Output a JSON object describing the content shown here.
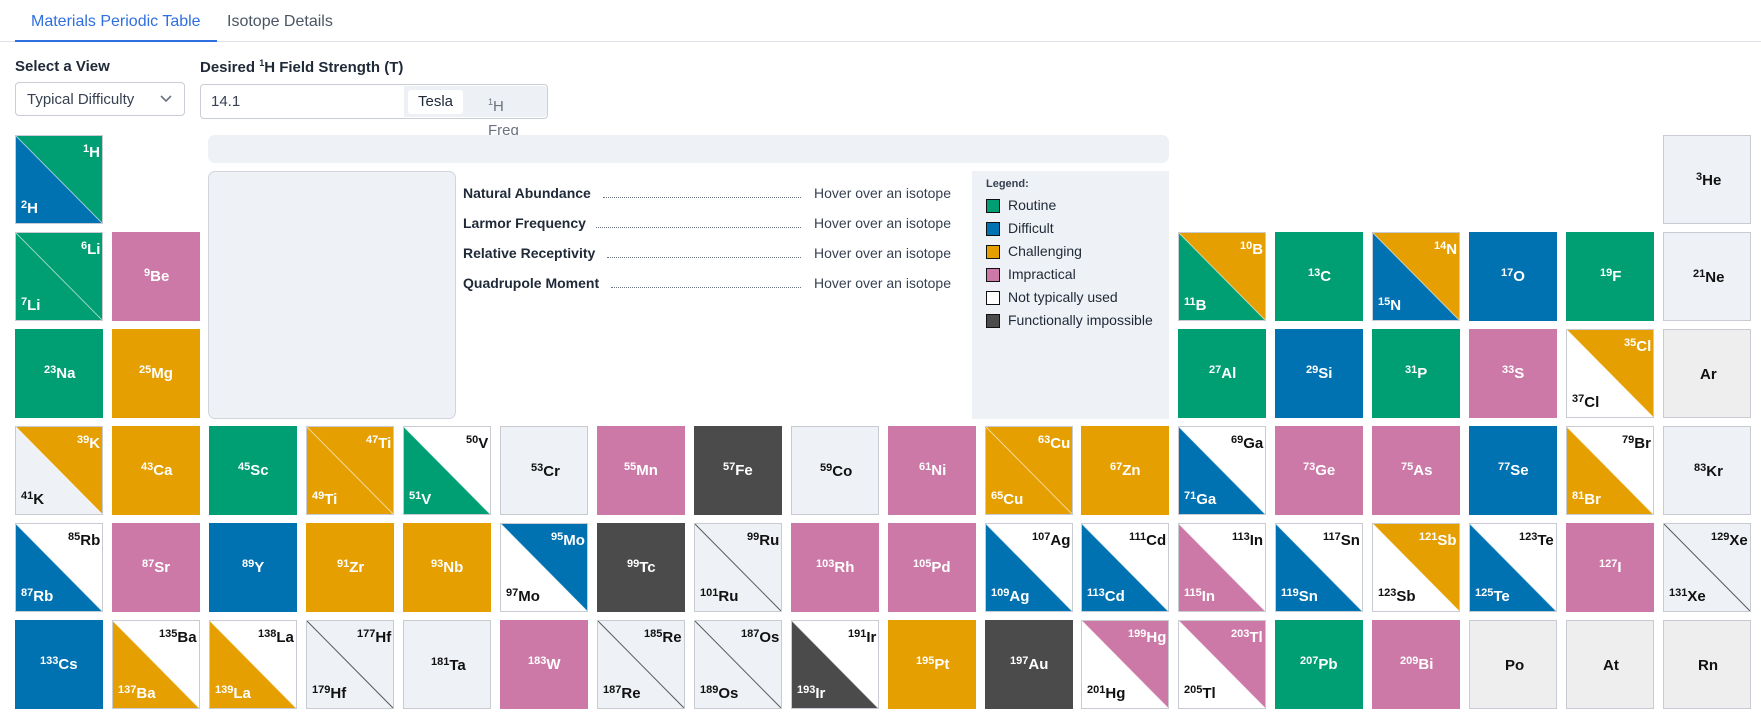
{
  "tabs": [
    {
      "label": "Materials Periodic Table",
      "active": true
    },
    {
      "label": "Isotope Details",
      "active": false
    }
  ],
  "view": {
    "label": "Select a View",
    "value": "Typical Difficulty"
  },
  "field": {
    "label_pre": "Desired",
    "label_sup": "1",
    "label_post": "H Field Strength (T)",
    "value": "14.1",
    "unit_on": "Tesla",
    "unit_off_sup": "1",
    "unit_off": "H Freq"
  },
  "colors": {
    "routine": "#009e73",
    "difficult": "#0072b2",
    "challenging": "#e69f00",
    "impractical": "#cc79a7",
    "not_used": "#ffffff",
    "impossible": "#4b4b4b",
    "empty": "#eef1f5",
    "nodata": "#eeeeee"
  },
  "properties": [
    {
      "label": "Natural Abundance",
      "value": "Hover over an isotope"
    },
    {
      "label": "Larmor Frequency",
      "value": "Hover over an isotope"
    },
    {
      "label": "Relative Receptivity",
      "value": "Hover over an isotope"
    },
    {
      "label": "Quadrupole Moment",
      "value": "Hover over an isotope"
    }
  ],
  "legend": {
    "title": "Legend:",
    "items": [
      {
        "label": "Routine",
        "color": "#009e73"
      },
      {
        "label": "Difficult",
        "color": "#0072b2"
      },
      {
        "label": "Challenging",
        "color": "#e69f00"
      },
      {
        "label": "Impractical",
        "color": "#cc79a7"
      },
      {
        "label": "Not typically used",
        "color": "#ffffff"
      },
      {
        "label": "Functionally impossible",
        "color": "#4b4b4b"
      }
    ]
  },
  "elements": [
    {
      "row": 1,
      "col": 1,
      "type": "two",
      "a": {
        "m": "1",
        "s": "H",
        "c": "routine"
      },
      "b": {
        "m": "2",
        "s": "H",
        "c": "difficult"
      }
    },
    {
      "row": 1,
      "col": 18,
      "type": "one",
      "a": {
        "m": "3",
        "s": "He",
        "c": "empty"
      }
    },
    {
      "row": 2,
      "col": 1,
      "type": "two",
      "a": {
        "m": "6",
        "s": "Li",
        "c": "routine"
      },
      "b": {
        "m": "7",
        "s": "Li",
        "c": "routine"
      }
    },
    {
      "row": 2,
      "col": 2,
      "type": "one",
      "a": {
        "m": "9",
        "s": "Be",
        "c": "impractical"
      }
    },
    {
      "row": 2,
      "col": 13,
      "type": "two",
      "a": {
        "m": "10",
        "s": "B",
        "c": "challenging"
      },
      "b": {
        "m": "11",
        "s": "B",
        "c": "routine"
      }
    },
    {
      "row": 2,
      "col": 14,
      "type": "one",
      "a": {
        "m": "13",
        "s": "C",
        "c": "routine"
      }
    },
    {
      "row": 2,
      "col": 15,
      "type": "two",
      "a": {
        "m": "14",
        "s": "N",
        "c": "challenging"
      },
      "b": {
        "m": "15",
        "s": "N",
        "c": "difficult"
      }
    },
    {
      "row": 2,
      "col": 16,
      "type": "one",
      "a": {
        "m": "17",
        "s": "O",
        "c": "difficult"
      }
    },
    {
      "row": 2,
      "col": 17,
      "type": "one",
      "a": {
        "m": "19",
        "s": "F",
        "c": "routine"
      }
    },
    {
      "row": 2,
      "col": 18,
      "type": "one",
      "a": {
        "m": "21",
        "s": "Ne",
        "c": "empty"
      }
    },
    {
      "row": 3,
      "col": 1,
      "type": "one",
      "a": {
        "m": "23",
        "s": "Na",
        "c": "routine"
      }
    },
    {
      "row": 3,
      "col": 2,
      "type": "one",
      "a": {
        "m": "25",
        "s": "Mg",
        "c": "challenging"
      }
    },
    {
      "row": 3,
      "col": 13,
      "type": "one",
      "a": {
        "m": "27",
        "s": "Al",
        "c": "routine"
      }
    },
    {
      "row": 3,
      "col": 14,
      "type": "one",
      "a": {
        "m": "29",
        "s": "Si",
        "c": "difficult"
      }
    },
    {
      "row": 3,
      "col": 15,
      "type": "one",
      "a": {
        "m": "31",
        "s": "P",
        "c": "routine"
      }
    },
    {
      "row": 3,
      "col": 16,
      "type": "one",
      "a": {
        "m": "33",
        "s": "S",
        "c": "impractical"
      }
    },
    {
      "row": 3,
      "col": 17,
      "type": "two",
      "a": {
        "m": "35",
        "s": "Cl",
        "c": "challenging"
      },
      "b": {
        "m": "37",
        "s": "Cl",
        "c": "not_used"
      }
    },
    {
      "row": 3,
      "col": 18,
      "type": "one",
      "a": {
        "m": "",
        "s": "Ar",
        "c": "nodata"
      }
    },
    {
      "row": 4,
      "col": 1,
      "type": "two",
      "a": {
        "m": "39",
        "s": "K",
        "c": "challenging"
      },
      "b": {
        "m": "41",
        "s": "K",
        "c": "empty"
      }
    },
    {
      "row": 4,
      "col": 2,
      "type": "one",
      "a": {
        "m": "43",
        "s": "Ca",
        "c": "challenging"
      }
    },
    {
      "row": 4,
      "col": 3,
      "type": "one",
      "a": {
        "m": "45",
        "s": "Sc",
        "c": "routine"
      }
    },
    {
      "row": 4,
      "col": 4,
      "type": "two",
      "a": {
        "m": "47",
        "s": "Ti",
        "c": "challenging"
      },
      "b": {
        "m": "49",
        "s": "Ti",
        "c": "challenging"
      }
    },
    {
      "row": 4,
      "col": 5,
      "type": "two",
      "a": {
        "m": "50",
        "s": "V",
        "c": "not_used"
      },
      "b": {
        "m": "51",
        "s": "V",
        "c": "routine"
      }
    },
    {
      "row": 4,
      "col": 6,
      "type": "one",
      "a": {
        "m": "53",
        "s": "Cr",
        "c": "empty"
      }
    },
    {
      "row": 4,
      "col": 7,
      "type": "one",
      "a": {
        "m": "55",
        "s": "Mn",
        "c": "impractical"
      }
    },
    {
      "row": 4,
      "col": 8,
      "type": "one",
      "a": {
        "m": "57",
        "s": "Fe",
        "c": "impossible"
      }
    },
    {
      "row": 4,
      "col": 9,
      "type": "one",
      "a": {
        "m": "59",
        "s": "Co",
        "c": "empty"
      }
    },
    {
      "row": 4,
      "col": 10,
      "type": "one",
      "a": {
        "m": "61",
        "s": "Ni",
        "c": "impractical"
      }
    },
    {
      "row": 4,
      "col": 11,
      "type": "two",
      "a": {
        "m": "63",
        "s": "Cu",
        "c": "challenging"
      },
      "b": {
        "m": "65",
        "s": "Cu",
        "c": "challenging"
      }
    },
    {
      "row": 4,
      "col": 12,
      "type": "one",
      "a": {
        "m": "67",
        "s": "Zn",
        "c": "challenging"
      }
    },
    {
      "row": 4,
      "col": 13,
      "type": "two",
      "a": {
        "m": "69",
        "s": "Ga",
        "c": "not_used"
      },
      "b": {
        "m": "71",
        "s": "Ga",
        "c": "difficult"
      }
    },
    {
      "row": 4,
      "col": 14,
      "type": "one",
      "a": {
        "m": "73",
        "s": "Ge",
        "c": "impractical"
      }
    },
    {
      "row": 4,
      "col": 15,
      "type": "one",
      "a": {
        "m": "75",
        "s": "As",
        "c": "impractical"
      }
    },
    {
      "row": 4,
      "col": 16,
      "type": "one",
      "a": {
        "m": "77",
        "s": "Se",
        "c": "difficult"
      }
    },
    {
      "row": 4,
      "col": 17,
      "type": "two",
      "a": {
        "m": "79",
        "s": "Br",
        "c": "not_used"
      },
      "b": {
        "m": "81",
        "s": "Br",
        "c": "challenging"
      }
    },
    {
      "row": 4,
      "col": 18,
      "type": "one",
      "a": {
        "m": "83",
        "s": "Kr",
        "c": "empty"
      }
    },
    {
      "row": 5,
      "col": 1,
      "type": "two",
      "a": {
        "m": "85",
        "s": "Rb",
        "c": "not_used"
      },
      "b": {
        "m": "87",
        "s": "Rb",
        "c": "difficult"
      }
    },
    {
      "row": 5,
      "col": 2,
      "type": "one",
      "a": {
        "m": "87",
        "s": "Sr",
        "c": "impractical"
      }
    },
    {
      "row": 5,
      "col": 3,
      "type": "one",
      "a": {
        "m": "89",
        "s": "Y",
        "c": "difficult"
      }
    },
    {
      "row": 5,
      "col": 4,
      "type": "one",
      "a": {
        "m": "91",
        "s": "Zr",
        "c": "challenging"
      }
    },
    {
      "row": 5,
      "col": 5,
      "type": "one",
      "a": {
        "m": "93",
        "s": "Nb",
        "c": "challenging"
      }
    },
    {
      "row": 5,
      "col": 6,
      "type": "two",
      "a": {
        "m": "95",
        "s": "Mo",
        "c": "difficult"
      },
      "b": {
        "m": "97",
        "s": "Mo",
        "c": "not_used"
      }
    },
    {
      "row": 5,
      "col": 7,
      "type": "one",
      "a": {
        "m": "99",
        "s": "Tc",
        "c": "impossible"
      }
    },
    {
      "row": 5,
      "col": 8,
      "type": "two",
      "a": {
        "m": "99",
        "s": "Ru",
        "c": "empty"
      },
      "b": {
        "m": "101",
        "s": "Ru",
        "c": "empty"
      }
    },
    {
      "row": 5,
      "col": 9,
      "type": "one",
      "a": {
        "m": "103",
        "s": "Rh",
        "c": "impractical"
      }
    },
    {
      "row": 5,
      "col": 10,
      "type": "one",
      "a": {
        "m": "105",
        "s": "Pd",
        "c": "impractical"
      }
    },
    {
      "row": 5,
      "col": 11,
      "type": "two",
      "a": {
        "m": "107",
        "s": "Ag",
        "c": "not_used"
      },
      "b": {
        "m": "109",
        "s": "Ag",
        "c": "difficult"
      }
    },
    {
      "row": 5,
      "col": 12,
      "type": "two",
      "a": {
        "m": "111",
        "s": "Cd",
        "c": "not_used"
      },
      "b": {
        "m": "113",
        "s": "Cd",
        "c": "difficult"
      }
    },
    {
      "row": 5,
      "col": 13,
      "type": "two",
      "a": {
        "m": "113",
        "s": "In",
        "c": "not_used"
      },
      "b": {
        "m": "115",
        "s": "In",
        "c": "impractical"
      }
    },
    {
      "row": 5,
      "col": 14,
      "type": "two",
      "a": {
        "m": "117",
        "s": "Sn",
        "c": "not_used"
      },
      "b": {
        "m": "119",
        "s": "Sn",
        "c": "difficult"
      }
    },
    {
      "row": 5,
      "col": 15,
      "type": "two",
      "a": {
        "m": "121",
        "s": "Sb",
        "c": "challenging"
      },
      "b": {
        "m": "123",
        "s": "Sb",
        "c": "not_used"
      }
    },
    {
      "row": 5,
      "col": 16,
      "type": "two",
      "a": {
        "m": "123",
        "s": "Te",
        "c": "not_used"
      },
      "b": {
        "m": "125",
        "s": "Te",
        "c": "difficult"
      }
    },
    {
      "row": 5,
      "col": 17,
      "type": "one",
      "a": {
        "m": "127",
        "s": "I",
        "c": "impractical"
      }
    },
    {
      "row": 5,
      "col": 18,
      "type": "two",
      "a": {
        "m": "129",
        "s": "Xe",
        "c": "empty"
      },
      "b": {
        "m": "131",
        "s": "Xe",
        "c": "empty"
      }
    },
    {
      "row": 6,
      "col": 1,
      "type": "one",
      "a": {
        "m": "133",
        "s": "Cs",
        "c": "difficult"
      }
    },
    {
      "row": 6,
      "col": 2,
      "type": "two",
      "a": {
        "m": "135",
        "s": "Ba",
        "c": "not_used"
      },
      "b": {
        "m": "137",
        "s": "Ba",
        "c": "challenging"
      }
    },
    {
      "row": 6,
      "col": 3,
      "type": "two",
      "a": {
        "m": "138",
        "s": "La",
        "c": "not_used"
      },
      "b": {
        "m": "139",
        "s": "La",
        "c": "challenging"
      }
    },
    {
      "row": 6,
      "col": 4,
      "type": "two",
      "a": {
        "m": "177",
        "s": "Hf",
        "c": "empty"
      },
      "b": {
        "m": "179",
        "s": "Hf",
        "c": "empty"
      }
    },
    {
      "row": 6,
      "col": 5,
      "type": "one",
      "a": {
        "m": "181",
        "s": "Ta",
        "c": "empty"
      }
    },
    {
      "row": 6,
      "col": 6,
      "type": "one",
      "a": {
        "m": "183",
        "s": "W",
        "c": "impractical"
      }
    },
    {
      "row": 6,
      "col": 7,
      "type": "two",
      "a": {
        "m": "185",
        "s": "Re",
        "c": "empty"
      },
      "b": {
        "m": "187",
        "s": "Re",
        "c": "empty"
      }
    },
    {
      "row": 6,
      "col": 8,
      "type": "two",
      "a": {
        "m": "187",
        "s": "Os",
        "c": "empty"
      },
      "b": {
        "m": "189",
        "s": "Os",
        "c": "empty"
      }
    },
    {
      "row": 6,
      "col": 9,
      "type": "two",
      "a": {
        "m": "191",
        "s": "Ir",
        "c": "not_used"
      },
      "b": {
        "m": "193",
        "s": "Ir",
        "c": "impossible"
      }
    },
    {
      "row": 6,
      "col": 10,
      "type": "one",
      "a": {
        "m": "195",
        "s": "Pt",
        "c": "challenging"
      }
    },
    {
      "row": 6,
      "col": 11,
      "type": "one",
      "a": {
        "m": "197",
        "s": "Au",
        "c": "impossible"
      }
    },
    {
      "row": 6,
      "col": 12,
      "type": "two",
      "a": {
        "m": "199",
        "s": "Hg",
        "c": "impractical"
      },
      "b": {
        "m": "201",
        "s": "Hg",
        "c": "not_used"
      }
    },
    {
      "row": 6,
      "col": 13,
      "type": "two",
      "a": {
        "m": "203",
        "s": "Tl",
        "c": "impractical"
      },
      "b": {
        "m": "205",
        "s": "Tl",
        "c": "not_used"
      }
    },
    {
      "row": 6,
      "col": 14,
      "type": "one",
      "a": {
        "m": "207",
        "s": "Pb",
        "c": "routine"
      }
    },
    {
      "row": 6,
      "col": 15,
      "type": "one",
      "a": {
        "m": "209",
        "s": "Bi",
        "c": "impractical"
      }
    },
    {
      "row": 6,
      "col": 16,
      "type": "one",
      "a": {
        "m": "",
        "s": "Po",
        "c": "nodata"
      }
    },
    {
      "row": 6,
      "col": 17,
      "type": "one",
      "a": {
        "m": "",
        "s": "At",
        "c": "nodata"
      }
    },
    {
      "row": 6,
      "col": 18,
      "type": "one",
      "a": {
        "m": "",
        "s": "Rn",
        "c": "nodata"
      }
    }
  ]
}
